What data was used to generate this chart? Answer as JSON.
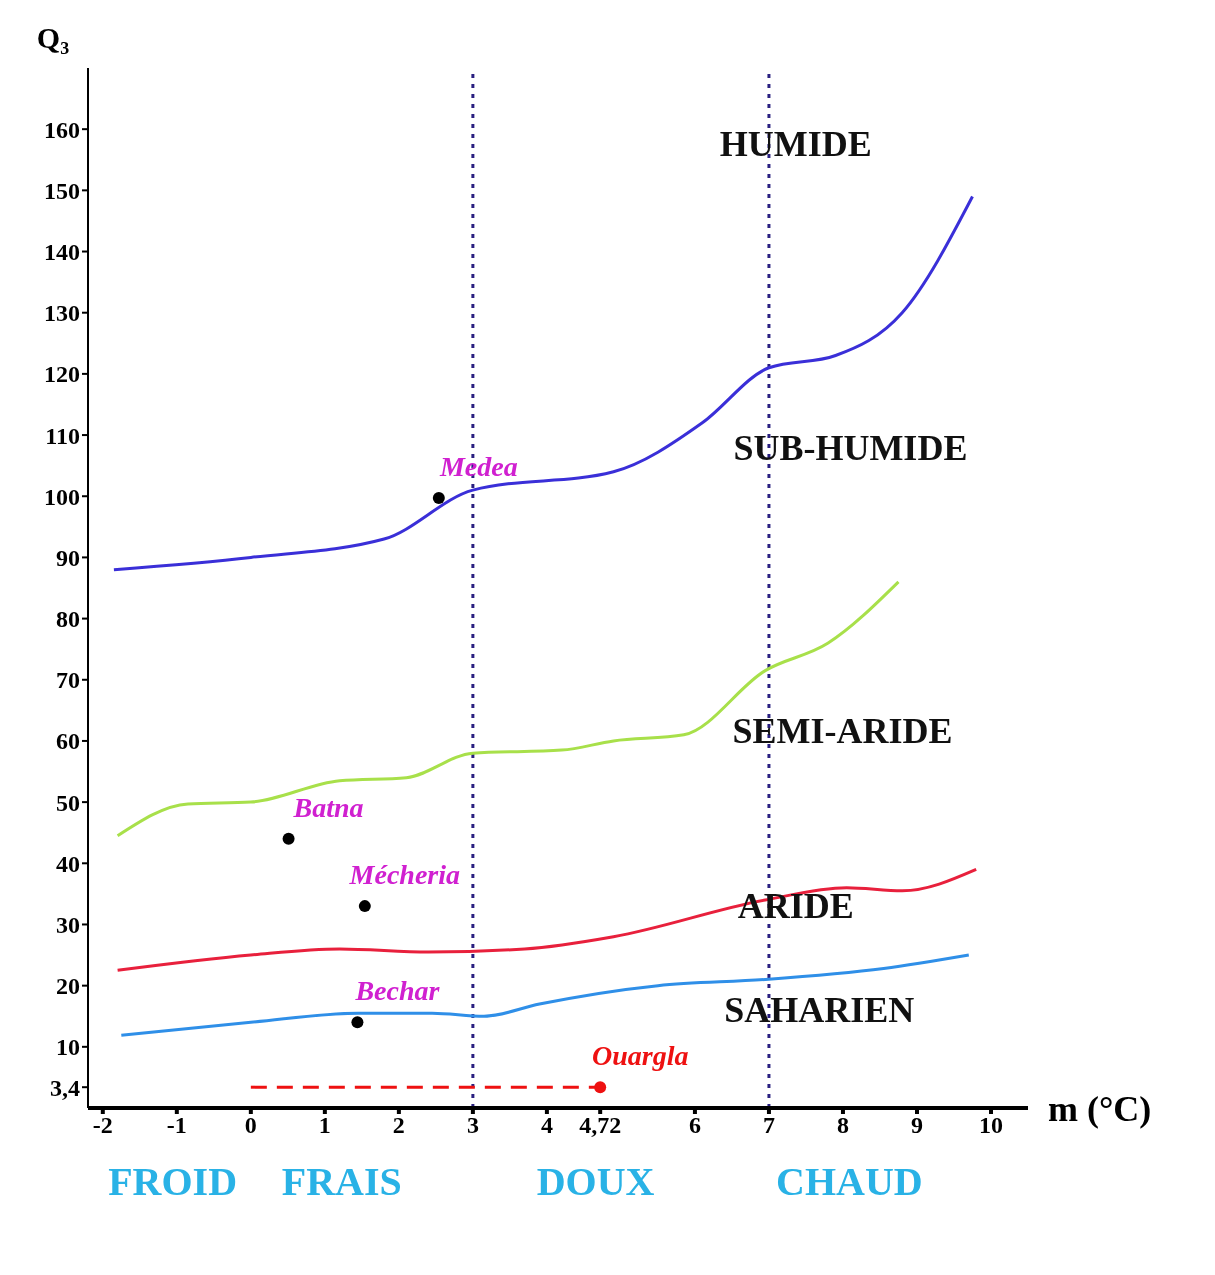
{
  "chart_data": {
    "type": "line",
    "xlabel": "m (°C)",
    "ylabel": "Q₃",
    "xlim": [
      -2.2,
      10.5
    ],
    "ylim": [
      0,
      170
    ],
    "xticks": [
      -2,
      -1,
      0,
      1,
      2,
      3,
      4,
      {
        "value": 4.72,
        "label": "4,72"
      },
      6,
      7,
      8,
      9,
      10
    ],
    "yticks": [
      {
        "value": 3.4,
        "label": "3,4"
      },
      10,
      20,
      30,
      40,
      50,
      60,
      70,
      80,
      90,
      100,
      110,
      120,
      130,
      140,
      150,
      160
    ],
    "marker": "none",
    "line_style": "solid",
    "series": [
      {
        "color": "#3a2fd8",
        "x": [
          -1.85,
          0,
          1.8,
          3,
          4.9,
          6.1,
          7,
          7.9,
          8.8,
          9.75
        ],
        "values": [
          88,
          90,
          93,
          101,
          104,
          112,
          121,
          123,
          130,
          149
        ]
      },
      {
        "color": "#a8e04a",
        "x": [
          -1.8,
          -0.85,
          0,
          1.2,
          2.1,
          3,
          4.2,
          4.9,
          5.85,
          6.95,
          7.8,
          8.75
        ],
        "values": [
          44.5,
          49.7,
          50,
          53.5,
          54,
          58,
          58.5,
          60,
          61,
          71.5,
          76,
          86
        ]
      },
      {
        "color": "#e8203c",
        "x": [
          -1.8,
          0,
          1.2,
          2.4,
          3.7,
          4.9,
          6.95,
          8.05,
          8.8,
          9.8
        ],
        "values": [
          22.5,
          25,
          26,
          25.5,
          26,
          28,
          34,
          36,
          35.5,
          39
        ]
      },
      {
        "color": "#2f8fe8",
        "x": [
          -1.75,
          0,
          1.45,
          2.45,
          3.15,
          3.9,
          5.5,
          6.95,
          8.55,
          9.7
        ],
        "values": [
          11.9,
          14,
          15.5,
          15.5,
          15,
          17,
          20,
          21,
          22.8,
          25
        ]
      },
      {
        "color": "#ee1111",
        "line_style": "dashed",
        "x": [
          0,
          4.72
        ],
        "values": [
          3.4,
          3.4
        ]
      },
      {
        "type": "scatter",
        "name": "Medea",
        "color": "#000000",
        "marker": "circle",
        "x": [
          2.54
        ],
        "values": [
          99.7
        ]
      },
      {
        "type": "scatter",
        "name": "Batna",
        "color": "#000000",
        "marker": "circle",
        "x": [
          0.51
        ],
        "values": [
          44
        ]
      },
      {
        "type": "scatter",
        "name": "Mécheria",
        "color": "#000000",
        "marker": "circle",
        "x": [
          1.54
        ],
        "values": [
          33
        ]
      },
      {
        "type": "scatter",
        "name": "Bechar",
        "color": "#000000",
        "marker": "circle",
        "x": [
          1.44
        ],
        "values": [
          14
        ]
      },
      {
        "type": "scatter",
        "name": "Ouargla",
        "color": "#ee1111",
        "marker": "circle",
        "x": [
          4.72
        ],
        "values": [
          3.4
        ]
      }
    ],
    "ref_lines": [
      {
        "axis": "x",
        "value": 3,
        "color": "#2a2080",
        "line_style": "dotted"
      },
      {
        "axis": "x",
        "value": 7,
        "color": "#2a2080",
        "line_style": "dotted"
      }
    ],
    "annotations": [
      "HUMIDE",
      "SUB-HUMIDE",
      "SEMI-ARIDE",
      "ARIDE",
      "SAHARIEN",
      "FROID",
      "FRAIS",
      "DOUX",
      "CHAUD"
    ]
  }
}
